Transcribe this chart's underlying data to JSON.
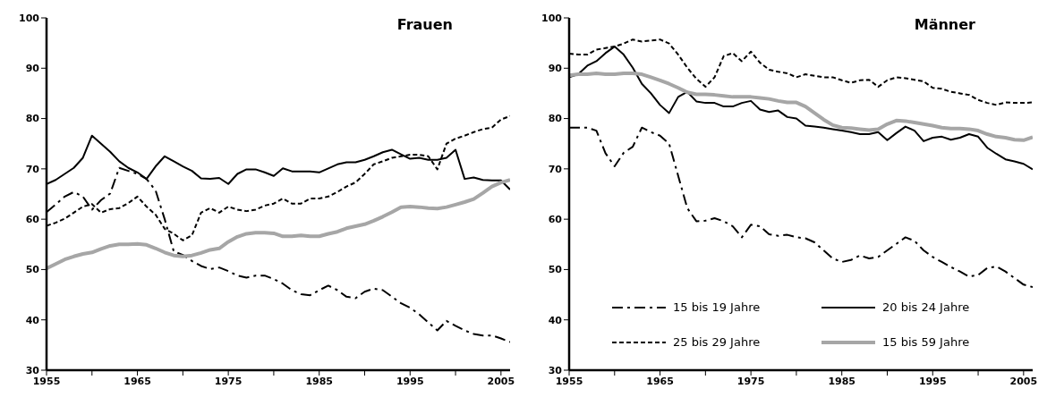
{
  "chart_data": [
    {
      "type": "line",
      "title": "Frauen",
      "x": [
        1955,
        1956,
        1957,
        1958,
        1959,
        1960,
        1961,
        1962,
        1963,
        1964,
        1965,
        1966,
        1967,
        1968,
        1969,
        1970,
        1971,
        1972,
        1973,
        1974,
        1975,
        1976,
        1977,
        1978,
        1979,
        1980,
        1981,
        1982,
        1983,
        1984,
        1985,
        1986,
        1987,
        1988,
        1989,
        1990,
        1991,
        1992,
        1993,
        1994,
        1995,
        1996,
        1997,
        1998,
        1999,
        2000,
        2001,
        2002,
        2003,
        2004,
        2005,
        2006
      ],
      "xlim": [
        1955,
        2006
      ],
      "xticks": [
        1955,
        {
          "value": 1960,
          "label": null
        },
        1965,
        {
          "value": 1970,
          "label": null
        },
        1975,
        {
          "value": 1980,
          "label": null
        },
        1985,
        {
          "value": 1990,
          "label": null
        },
        1995,
        {
          "value": 2000,
          "label": null
        },
        2005
      ],
      "ylim": [
        30,
        100
      ],
      "yticks": [
        30,
        40,
        50,
        60,
        70,
        80,
        90,
        100
      ],
      "legend": false,
      "marker": "none",
      "series": [
        {
          "color": "#000000",
          "line_style": "dashdot",
          "values": [
            61.4,
            62.9,
            64.5,
            65.4,
            64.5,
            61.9,
            63.8,
            65.1,
            70.2,
            69.6,
            69,
            68,
            65.7,
            60,
            53.6,
            52.9,
            51.7,
            50.7,
            50.1,
            50.4,
            49.7,
            48.8,
            48.4,
            48.8,
            48.8,
            48.1,
            47.2,
            45.9,
            45.1,
            44.9,
            45.9,
            46.8,
            45.9,
            44.6,
            44.3,
            45.6,
            46.2,
            45.9,
            44.6,
            43.3,
            42.4,
            41.1,
            39.5,
            37.9,
            39.8,
            38.8,
            37.9,
            37.2,
            36.9,
            36.9,
            36.3,
            35.6
          ]
        },
        {
          "color": "#000000",
          "line_style": "solid",
          "values": [
            67,
            67.8,
            69,
            70.2,
            72.2,
            76.6,
            75,
            73.4,
            71.5,
            70.2,
            69.3,
            68,
            70.5,
            72.5,
            71.5,
            70.5,
            69.6,
            68.1,
            68,
            68.2,
            67,
            69,
            69.9,
            69.9,
            69.3,
            68.6,
            70.1,
            69.5,
            69.5,
            69.5,
            69.3,
            70.1,
            70.9,
            71.3,
            71.3,
            71.8,
            72.5,
            73.3,
            73.8,
            72.9,
            72,
            72.2,
            71.8,
            71.8,
            72.2,
            73.8,
            68,
            68.3,
            67.8,
            67.7,
            67.7,
            65.9
          ]
        },
        {
          "color": "#000000",
          "line_style": "dashed",
          "values": [
            58.7,
            59.3,
            60.1,
            61.3,
            62.5,
            63,
            61.3,
            62,
            62.2,
            63.2,
            64.5,
            62.5,
            60.9,
            58.1,
            57.1,
            55.8,
            56.8,
            61.3,
            62.2,
            61.3,
            62.5,
            61.9,
            61.6,
            61.9,
            62.7,
            63.1,
            64.1,
            63.1,
            63.1,
            64.1,
            64.1,
            64.5,
            65.4,
            66.5,
            67.3,
            69,
            70.9,
            71.5,
            72.2,
            72.5,
            72.8,
            72.8,
            72.5,
            69.9,
            75,
            76,
            76.6,
            77.3,
            77.9,
            78.2,
            79.8,
            80.5
          ]
        },
        {
          "color": "#a6a6a6",
          "line_style": "solid",
          "values": [
            50.2,
            51.1,
            52,
            52.6,
            53.1,
            53.4,
            54.1,
            54.7,
            55,
            55,
            55.1,
            54.9,
            54.2,
            53.4,
            52.8,
            52.6,
            52.8,
            53.3,
            53.9,
            54.2,
            55.5,
            56.5,
            57.1,
            57.3,
            57.3,
            57.2,
            56.6,
            56.6,
            56.8,
            56.6,
            56.6,
            57.1,
            57.5,
            58.2,
            58.6,
            59,
            59.7,
            60.5,
            61.4,
            62.4,
            62.5,
            62.4,
            62.2,
            62.1,
            62.4,
            62.9,
            63.4,
            64,
            65.2,
            66.5,
            67.3,
            67.8
          ]
        }
      ]
    },
    {
      "type": "line",
      "title": "Männer",
      "x": [
        1955,
        1956,
        1957,
        1958,
        1959,
        1960,
        1961,
        1962,
        1963,
        1964,
        1965,
        1966,
        1967,
        1968,
        1969,
        1970,
        1971,
        1972,
        1973,
        1974,
        1975,
        1976,
        1977,
        1978,
        1979,
        1980,
        1981,
        1982,
        1983,
        1984,
        1985,
        1986,
        1987,
        1988,
        1989,
        1990,
        1991,
        1992,
        1993,
        1994,
        1995,
        1996,
        1997,
        1998,
        1999,
        2000,
        2001,
        2002,
        2003,
        2004,
        2005,
        2006
      ],
      "xlim": [
        1955,
        2006
      ],
      "xticks": [
        1955,
        {
          "value": 1960,
          "label": null
        },
        1965,
        {
          "value": 1970,
          "label": null
        },
        1975,
        {
          "value": 1980,
          "label": null
        },
        1985,
        {
          "value": 1990,
          "label": null
        },
        1995,
        {
          "value": 2000,
          "label": null
        },
        2005
      ],
      "ylim": [
        30,
        100
      ],
      "yticks": [
        30,
        40,
        50,
        60,
        70,
        80,
        90,
        100
      ],
      "legend": "bottom",
      "marker": "none",
      "series": [
        {
          "name": "15 bis 19 Jahre",
          "color": "#000000",
          "line_style": "dashdot",
          "values": [
            78.2,
            78.2,
            78.2,
            77.6,
            73.1,
            70.5,
            73.2,
            74.4,
            78.2,
            77.3,
            76.6,
            75,
            68.6,
            62.2,
            59.6,
            59.7,
            60.2,
            59.6,
            58.6,
            56.4,
            58.9,
            58.6,
            57,
            56.7,
            56.9,
            56.4,
            56.2,
            55.4,
            53.8,
            52.2,
            51.5,
            51.9,
            52.8,
            52.2,
            52.5,
            53.8,
            55.1,
            56.4,
            55.7,
            53.8,
            52.5,
            51.5,
            50.5,
            49.6,
            48.6,
            48.9,
            50.3,
            50.6,
            49.6,
            48.3,
            47,
            46.5
          ]
        },
        {
          "name": "20 bis 24 Jahre",
          "color": "#000000",
          "line_style": "solid",
          "values": [
            88.2,
            88.8,
            90.5,
            91.4,
            93,
            94.3,
            92.7,
            90.1,
            86.9,
            85,
            82.7,
            81.1,
            84.3,
            85.3,
            83.4,
            83.1,
            83.1,
            82.4,
            82.4,
            83.1,
            83.5,
            81.8,
            81.3,
            81.6,
            80.3,
            80,
            78.6,
            78.4,
            78.2,
            77.9,
            77.6,
            77.3,
            76.9,
            76.9,
            77.3,
            75.7,
            77.1,
            78.4,
            77.6,
            75.5,
            76.2,
            76.4,
            75.8,
            76.2,
            76.9,
            76.4,
            74.2,
            73,
            71.9,
            71.5,
            71,
            69.9
          ]
        },
        {
          "name": "25 bis 29 Jahre",
          "color": "#000000",
          "line_style": "dashed",
          "values": [
            92.9,
            92.7,
            92.7,
            93.7,
            94,
            94.3,
            94.9,
            95.7,
            95.3,
            95.5,
            95.7,
            94.9,
            92.7,
            90.1,
            87.9,
            86.3,
            88.2,
            92.4,
            93,
            91.4,
            93.3,
            91.1,
            89.7,
            89.3,
            89,
            88.2,
            88.8,
            88.5,
            88.2,
            88.2,
            87.6,
            87.1,
            87.6,
            87.7,
            86.3,
            87.6,
            88.2,
            88,
            87.7,
            87.4,
            86.1,
            85.9,
            85.3,
            85,
            84.7,
            83.7,
            83.1,
            82.7,
            83.2,
            83.1,
            83.1,
            83.2
          ]
        },
        {
          "name": "15 bis 59 Jahre",
          "color": "#a6a6a6",
          "line_style": "solid",
          "values": [
            88.6,
            88.8,
            88.8,
            89,
            88.8,
            88.8,
            89,
            89,
            88.8,
            88.2,
            87.6,
            86.9,
            86.1,
            85.2,
            84.8,
            84.8,
            84.7,
            84.5,
            84.3,
            84.3,
            84.3,
            84.1,
            83.9,
            83.5,
            83.2,
            83.2,
            82.4,
            81.1,
            79.8,
            78.7,
            78.2,
            78.1,
            77.9,
            77.7,
            77.9,
            78.9,
            79.6,
            79.5,
            79.2,
            78.9,
            78.6,
            78.2,
            78,
            78,
            77.9,
            77.6,
            76.9,
            76.4,
            76.2,
            75.8,
            75.7,
            76.3
          ]
        }
      ]
    }
  ]
}
